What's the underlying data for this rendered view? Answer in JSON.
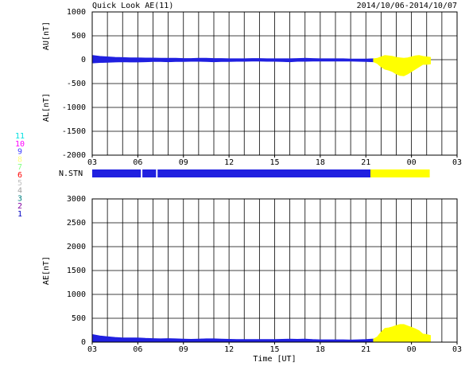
{
  "header": {
    "title": "Quick Look AE(11)",
    "date": "2014/10/06-2014/10/07"
  },
  "chart_data": [
    {
      "type": "band",
      "ylabels": [
        "AU[nT]",
        "AL[nT]"
      ],
      "xlim": [
        3,
        27
      ],
      "xticks": [
        {
          "value": 3,
          "label": "03"
        },
        {
          "value": 6,
          "label": "06"
        },
        {
          "value": 9,
          "label": "09"
        },
        12,
        15,
        18,
        21,
        {
          "value": 24,
          "label": "00"
        },
        {
          "value": 27,
          "label": "03"
        }
      ],
      "xgrid_step": 1,
      "ylim": [
        -2000,
        1000
      ],
      "yticks": [
        -2000,
        -1500,
        -1000,
        -500,
        0,
        500,
        1000
      ],
      "series": [
        {
          "color": "#2020e0",
          "x": [
            3,
            3.5,
            4,
            4.5,
            5,
            5.5,
            6,
            6.5,
            7,
            7.5,
            8,
            8.5,
            9,
            9.5,
            10,
            10.5,
            11,
            11.5,
            12,
            12.5,
            13,
            13.5,
            14,
            14.5,
            15,
            15.5,
            16,
            16.5,
            17,
            17.5,
            18,
            18.5,
            19,
            19.5,
            20,
            20.5,
            21,
            21.5
          ],
          "au": [
            90,
            70,
            60,
            50,
            45,
            40,
            40,
            35,
            35,
            30,
            30,
            30,
            25,
            25,
            30,
            30,
            25,
            25,
            20,
            20,
            20,
            25,
            25,
            20,
            20,
            20,
            20,
            25,
            30,
            25,
            20,
            20,
            20,
            20,
            15,
            15,
            15,
            20
          ],
          "al": [
            -70,
            -60,
            -55,
            -50,
            -45,
            -50,
            -50,
            -45,
            -40,
            -40,
            -45,
            -40,
            -40,
            -35,
            -35,
            -40,
            -45,
            -40,
            -40,
            -35,
            -35,
            -30,
            -30,
            -35,
            -35,
            -40,
            -45,
            -35,
            -35,
            -30,
            -30,
            -30,
            -30,
            -30,
            -30,
            -35,
            -40,
            -45
          ]
        },
        {
          "color": "#ffff00",
          "x": [
            21.5,
            21.75,
            22,
            22.25,
            22.5,
            22.75,
            23,
            23.25,
            23.5,
            23.75,
            24,
            24.25,
            24.5,
            24.75,
            25,
            25.25
          ],
          "au": [
            20,
            30,
            60,
            90,
            80,
            70,
            50,
            40,
            30,
            40,
            60,
            80,
            90,
            70,
            60,
            50
          ],
          "al": [
            -45,
            -80,
            -150,
            -200,
            -220,
            -250,
            -300,
            -330,
            -340,
            -300,
            -250,
            -200,
            -150,
            -100,
            -100,
            -90
          ]
        }
      ]
    },
    {
      "type": "area",
      "ylabel": "AE[nT]",
      "xlabel": "Time [UT]",
      "xlim": [
        3,
        27
      ],
      "xticks": [
        {
          "value": 3,
          "label": "03"
        },
        {
          "value": 6,
          "label": "06"
        },
        {
          "value": 9,
          "label": "09"
        },
        12,
        15,
        18,
        21,
        {
          "value": 24,
          "label": "00"
        },
        {
          "value": 27,
          "label": "03"
        }
      ],
      "xgrid_step": 1,
      "ylim": [
        0,
        3000
      ],
      "yticks": [
        0,
        500,
        1000,
        1500,
        2000,
        2500,
        3000
      ],
      "series": [
        {
          "color": "#2020e0",
          "x": [
            3,
            3.5,
            4,
            4.5,
            5,
            5.5,
            6,
            6.5,
            7,
            7.5,
            8,
            8.5,
            9,
            9.5,
            10,
            10.5,
            11,
            11.5,
            12,
            12.5,
            13,
            13.5,
            14,
            14.5,
            15,
            15.5,
            16,
            16.5,
            17,
            17.5,
            18,
            18.5,
            19,
            19.5,
            20,
            20.5,
            21,
            21.5
          ],
          "values": [
            160,
            130,
            115,
            100,
            90,
            90,
            90,
            80,
            75,
            70,
            75,
            70,
            65,
            60,
            65,
            70,
            70,
            65,
            60,
            55,
            55,
            55,
            55,
            55,
            55,
            60,
            65,
            60,
            65,
            55,
            50,
            50,
            50,
            50,
            45,
            50,
            55,
            65
          ]
        },
        {
          "color": "#ffff00",
          "x": [
            21.5,
            21.75,
            22,
            22.25,
            22.5,
            22.75,
            23,
            23.25,
            23.5,
            23.75,
            24,
            24.25,
            24.5,
            24.75,
            25,
            25.25
          ],
          "values": [
            65,
            110,
            210,
            290,
            300,
            320,
            350,
            370,
            370,
            340,
            310,
            280,
            240,
            170,
            160,
            140
          ]
        }
      ]
    }
  ],
  "n_stn": {
    "label": "N.STN",
    "segments": [
      {
        "start": 3,
        "end": 6.2,
        "color": "#2020e0"
      },
      {
        "start": 6.3,
        "end": 7.2,
        "color": "#2020e0"
      },
      {
        "start": 7.3,
        "end": 21.3,
        "color": "#2020e0"
      },
      {
        "start": 21.3,
        "end": 25.2,
        "color": "#ffff00"
      }
    ]
  },
  "stations": [
    {
      "label": "11",
      "color": "#00e0e0"
    },
    {
      "label": "10",
      "color": "#ff00ff"
    },
    {
      "label": "9",
      "color": "#4040ff"
    },
    {
      "label": "8",
      "color": "#ffff80"
    },
    {
      "label": "7",
      "color": "#80ff80"
    },
    {
      "label": "6",
      "color": "#ff0000"
    },
    {
      "label": "5",
      "color": "#c0c0c0"
    },
    {
      "label": "4",
      "color": "#a0a0a0"
    },
    {
      "label": "3",
      "color": "#008080"
    },
    {
      "label": "2",
      "color": "#8000a0"
    },
    {
      "label": "1",
      "color": "#0000c0"
    }
  ]
}
